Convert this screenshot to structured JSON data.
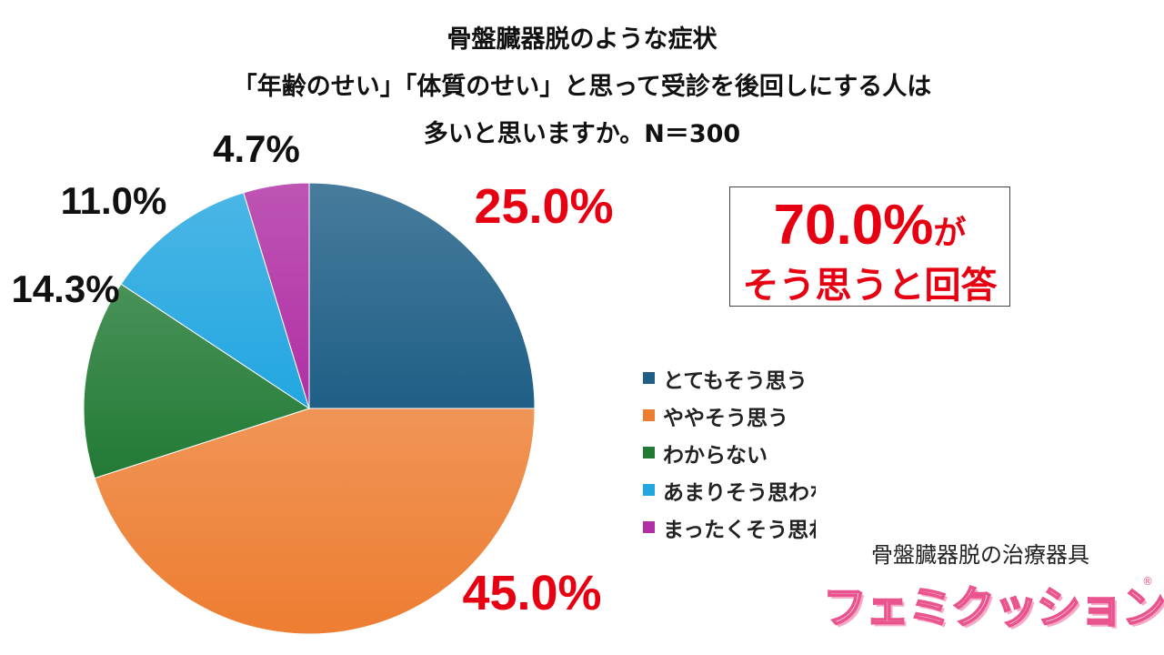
{
  "title_lines": [
    "骨盤臓器脱のような症状",
    "「年齢のせい」「体質のせい」と思って受診を後回しにする人は",
    "多いと思いますか。N＝300"
  ],
  "callout": {
    "value": "70.0%",
    "suffix": "が",
    "text": "そう思うと回答",
    "color": "#e60012"
  },
  "brand": {
    "subtitle": "骨盤臓器脱の治療器具",
    "logo_text": "フェミクッション",
    "reg_mark": "®"
  },
  "chart_data": {
    "type": "pie",
    "start": "12 o'clock",
    "direction": "clockwise",
    "legend_position": "right",
    "series": [
      {
        "name": "とてもそう思う",
        "value": 25.0,
        "label": "25.0%",
        "color": "#1f5f86",
        "label_color": "#e60012"
      },
      {
        "name": "ややそう思う",
        "value": 45.0,
        "label": "45.0%",
        "color": "#ed7d31",
        "label_color": "#e60012"
      },
      {
        "name": "わからない",
        "value": 14.3,
        "label": "14.3%",
        "color": "#217a34",
        "label_color": "#111111"
      },
      {
        "name": "あまりそう思わない",
        "value": 11.0,
        "label": "11.0%",
        "color": "#22a6e0",
        "label_color": "#111111"
      },
      {
        "name": "まったくそう思わない",
        "value": 4.7,
        "label": "4.7%",
        "color": "#b02fa4",
        "label_color": "#111111"
      }
    ]
  }
}
